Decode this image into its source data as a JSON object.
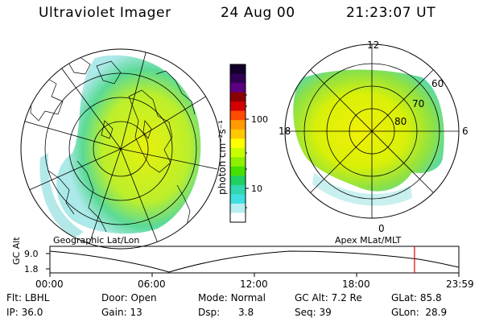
{
  "header": {
    "instrument": "Ultraviolet Imager",
    "date": "24 Aug 00",
    "time": "21:23:07 UT"
  },
  "colorbar": {
    "unit_label": "photon cm⁻²s⁻¹",
    "ticks": [
      "100",
      "10"
    ],
    "colors": [
      "#14002a",
      "#300055",
      "#5a0080",
      "#8a0000",
      "#d40000",
      "#ff4a00",
      "#ff9a00",
      "#ffc800",
      "#ffff00",
      "#c8ff00",
      "#8cf000",
      "#46e000",
      "#20d060",
      "#30d8b0",
      "#40e0e0",
      "#b8eef0",
      "#ffffff"
    ]
  },
  "maps": {
    "left_caption": "Geographic Lat/Lon",
    "right_caption": "Apex MLat/MLT",
    "mlt_labels": {
      "top": "12",
      "left": "18",
      "right": "6",
      "bottom": "0"
    },
    "mlat_labels": [
      "60",
      "70",
      "80"
    ]
  },
  "timeline": {
    "axis_label": "GC Alt",
    "y_ticks": [
      "9.0",
      "1.8"
    ],
    "x_ticks": [
      "00:00",
      "06:00",
      "12:00",
      "18:00",
      "23:59"
    ],
    "marker_time": "21:23",
    "marker_color": "#e00000"
  },
  "status": {
    "row1": [
      {
        "label": "Flt:",
        "value": "LBHL"
      },
      {
        "label": "Door:",
        "value": "Open"
      },
      {
        "label": "Mode:",
        "value": "Normal"
      },
      {
        "label": "GC Alt:",
        "value": "7.2 Re"
      },
      {
        "label": "GLat:",
        "value": "85.8"
      }
    ],
    "row2": [
      {
        "label": "IP:",
        "value": "36.0"
      },
      {
        "label": "Gain:",
        "value": "13"
      },
      {
        "label": "Dsp:",
        "value": "3.8"
      },
      {
        "label": "Seq:",
        "value": "39"
      },
      {
        "label": "GLon:",
        "value": "28.9"
      }
    ]
  }
}
